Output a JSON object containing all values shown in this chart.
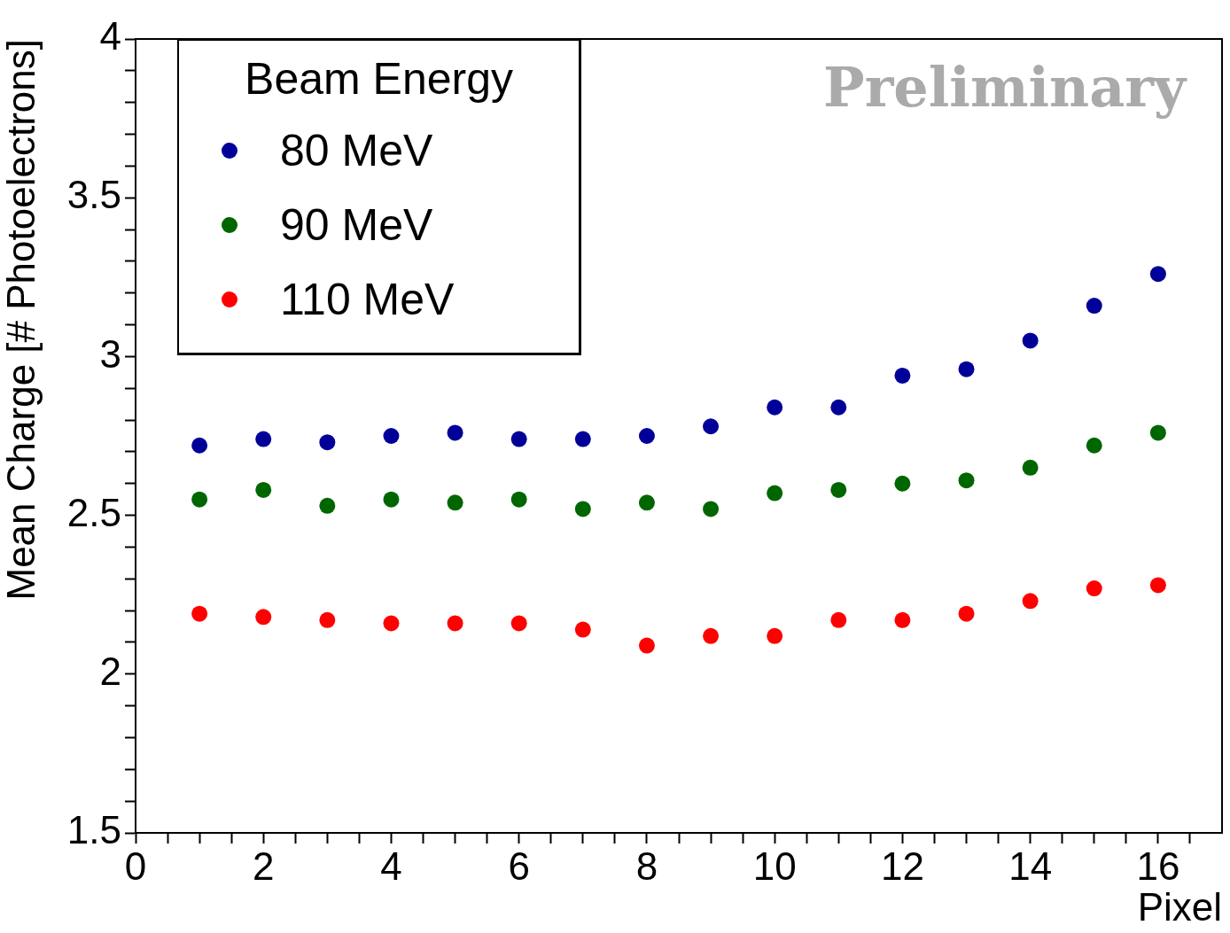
{
  "chart_data": {
    "type": "scatter",
    "xlabel": "Pixel",
    "ylabel": "Mean Charge [# Photoelectrons]",
    "legend_title": "Beam Energy",
    "legend": "top left",
    "grid": false,
    "marker": "circle",
    "x": [
      1,
      2,
      3,
      4,
      5,
      6,
      7,
      8,
      9,
      10,
      11,
      12,
      13,
      14,
      15,
      16
    ],
    "series": [
      {
        "name": "80 MeV",
        "color": "#000099",
        "values": [
          2.72,
          2.74,
          2.73,
          2.75,
          2.76,
          2.74,
          2.74,
          2.75,
          2.78,
          2.84,
          2.84,
          2.94,
          2.96,
          3.05,
          3.16,
          3.26
        ]
      },
      {
        "name": "90 MeV",
        "color": "#006600",
        "values": [
          2.55,
          2.58,
          2.53,
          2.55,
          2.54,
          2.55,
          2.52,
          2.54,
          2.52,
          2.57,
          2.58,
          2.6,
          2.61,
          2.65,
          2.72,
          2.76
        ]
      },
      {
        "name": "110 MeV",
        "color": "#ff0000",
        "values": [
          2.19,
          2.18,
          2.17,
          2.16,
          2.16,
          2.16,
          2.14,
          2.09,
          2.12,
          2.12,
          2.17,
          2.17,
          2.19,
          2.23,
          2.27,
          2.28
        ]
      }
    ],
    "xlim": [
      0,
      17
    ],
    "xticks": [
      0,
      {
        "value": 0.5,
        "label": null
      },
      {
        "value": 1,
        "label": null
      },
      {
        "value": 1.5,
        "label": null
      },
      2,
      {
        "value": 2.5,
        "label": null
      },
      {
        "value": 3,
        "label": null
      },
      {
        "value": 3.5,
        "label": null
      },
      4,
      {
        "value": 4.5,
        "label": null
      },
      {
        "value": 5,
        "label": null
      },
      {
        "value": 5.5,
        "label": null
      },
      6,
      {
        "value": 6.5,
        "label": null
      },
      {
        "value": 7,
        "label": null
      },
      {
        "value": 7.5,
        "label": null
      },
      8,
      {
        "value": 8.5,
        "label": null
      },
      {
        "value": 9,
        "label": null
      },
      {
        "value": 9.5,
        "label": null
      },
      10,
      {
        "value": 10.5,
        "label": null
      },
      {
        "value": 11,
        "label": null
      },
      {
        "value": 11.5,
        "label": null
      },
      12,
      {
        "value": 12.5,
        "label": null
      },
      {
        "value": 13,
        "label": null
      },
      {
        "value": 13.5,
        "label": null
      },
      14,
      {
        "value": 14.5,
        "label": null
      },
      {
        "value": 15,
        "label": null
      },
      {
        "value": 15.5,
        "label": null
      },
      16,
      {
        "value": 16.5,
        "label": null
      }
    ],
    "ylim": [
      1.5,
      4
    ],
    "yticks": [
      1.5,
      {
        "value": 1.6,
        "label": null
      },
      {
        "value": 1.7,
        "label": null
      },
      {
        "value": 1.8,
        "label": null
      },
      {
        "value": 1.9,
        "label": null
      },
      2,
      {
        "value": 2.1,
        "label": null
      },
      {
        "value": 2.2,
        "label": null
      },
      {
        "value": 2.3,
        "label": null
      },
      {
        "value": 2.4,
        "label": null
      },
      2.5,
      {
        "value": 2.6,
        "label": null
      },
      {
        "value": 2.7,
        "label": null
      },
      {
        "value": 2.8,
        "label": null
      },
      {
        "value": 2.9,
        "label": null
      },
      3,
      {
        "value": 3.1,
        "label": null
      },
      {
        "value": 3.2,
        "label": null
      },
      {
        "value": 3.3,
        "label": null
      },
      {
        "value": 3.4,
        "label": null
      },
      3.5,
      {
        "value": 3.6,
        "label": null
      },
      {
        "value": 3.7,
        "label": null
      },
      {
        "value": 3.8,
        "label": null
      },
      {
        "value": 3.9,
        "label": null
      },
      4
    ],
    "annotations": [
      "Preliminary"
    ]
  }
}
